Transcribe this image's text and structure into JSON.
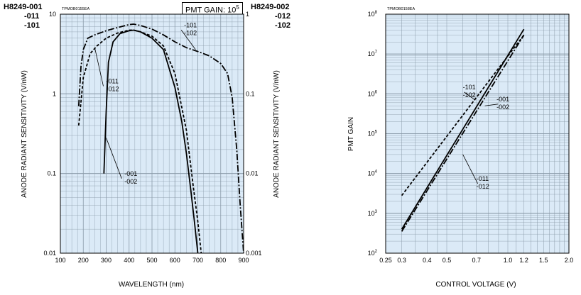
{
  "header": {
    "left_model": "H8249-001",
    "left_variants": [
      "-011",
      "-101"
    ],
    "right_model": "H8249-002",
    "right_variants": [
      "-012",
      "-102"
    ],
    "gain_label_prefix": "PMT GAIN: 10",
    "gain_label_exp": "5"
  },
  "chart_data": [
    {
      "type": "line",
      "figure_code": "TPMOB0155EA",
      "xlabel": "WAVELENGTH (nm)",
      "ylabel_left": "ANODE RADIANT SENSITIVITY (V/nW)",
      "ylabel_right": "ANODE RADIANT SENSITIVITY (V/nW)",
      "xlim": [
        100,
        900
      ],
      "ylim_left": [
        0.01,
        10
      ],
      "ylim_right": [
        0.001,
        1
      ],
      "y_scale": "log",
      "grid": true,
      "x_ticks": [
        "100",
        "200",
        "300",
        "400",
        "500",
        "600",
        "700",
        "800",
        "900"
      ],
      "y_ticks_left": [
        "0.01",
        "0.1",
        "1",
        "10"
      ],
      "y_ticks_right": [
        "0.001",
        "0.01",
        "0.1",
        "1"
      ],
      "series": [
        {
          "labels": [
            "-001",
            "-002"
          ],
          "style": "solid",
          "x": [
            290,
            300,
            310,
            330,
            360,
            400,
            420,
            450,
            500,
            550,
            600,
            630,
            650,
            670,
            685,
            700
          ],
          "y": [
            0.1,
            0.6,
            2.5,
            4.5,
            5.7,
            6.2,
            6.3,
            6.0,
            5.0,
            3.6,
            1.2,
            0.45,
            0.18,
            0.06,
            0.025,
            0.01
          ]
        },
        {
          "labels": [
            "-011",
            "-012"
          ],
          "style": "dashed",
          "x": [
            180,
            200,
            230,
            260,
            300,
            350,
            400,
            420,
            450,
            500,
            550,
            600,
            650,
            680,
            700,
            715
          ],
          "y": [
            0.4,
            1.6,
            3.2,
            4.0,
            5.0,
            5.8,
            6.3,
            6.3,
            6.0,
            5.3,
            4.0,
            1.8,
            0.35,
            0.07,
            0.025,
            0.01
          ]
        },
        {
          "labels": [
            "-101",
            "-102"
          ],
          "style": "dashdot",
          "x": [
            180,
            190,
            200,
            220,
            250,
            300,
            350,
            400,
            420,
            450,
            500,
            550,
            600,
            650,
            700,
            750,
            800,
            830,
            850,
            870,
            885,
            900
          ],
          "y": [
            0.7,
            2.2,
            3.6,
            5.0,
            5.5,
            6.2,
            6.8,
            7.4,
            7.5,
            7.2,
            6.5,
            5.5,
            4.5,
            3.8,
            3.4,
            3.0,
            2.4,
            1.8,
            0.9,
            0.2,
            0.04,
            0.01
          ]
        }
      ],
      "annotations": [
        {
          "lines": [
            "-101",
            "-102"
          ],
          "x": 640,
          "y": 6.6,
          "target_x": 690,
          "target_y": 3.6
        },
        {
          "lines": [
            "-011",
            "-012"
          ],
          "x": 300,
          "y": 1.3,
          "target_x": 250,
          "target_y": 3.8
        },
        {
          "lines": [
            "-001",
            "-002"
          ],
          "x": 380,
          "y": 0.09,
          "target_x": 300,
          "target_y": 0.28
        }
      ]
    },
    {
      "type": "line",
      "figure_code": "TPMOB0158EA",
      "xlabel": "CONTROL VOLTAGE (V)",
      "ylabel": "PMT GAIN",
      "x_scale": "log",
      "y_scale": "log",
      "xlim": [
        0.25,
        2.0
      ],
      "ylim": [
        100,
        100000000
      ],
      "grid": true,
      "x_ticks": [
        "0.25",
        "0.3",
        "0.4",
        "0.5",
        "0.7",
        "1.0",
        "1.2",
        "1.5",
        "2.0"
      ],
      "y_ticks": [
        {
          "base": "10",
          "exp": "2"
        },
        {
          "base": "10",
          "exp": "3"
        },
        {
          "base": "10",
          "exp": "4"
        },
        {
          "base": "10",
          "exp": "5"
        },
        {
          "base": "10",
          "exp": "6"
        },
        {
          "base": "10",
          "exp": "7"
        },
        {
          "base": "10",
          "exp": "8"
        }
      ],
      "series": [
        {
          "labels": [
            "-001",
            "-002"
          ],
          "style": "solid",
          "x": [
            0.3,
            1.2
          ],
          "y": [
            400,
            42000000
          ]
        },
        {
          "labels": [
            "-011",
            "-012"
          ],
          "style": "dashdot",
          "x": [
            0.3,
            1.2
          ],
          "y": [
            350,
            30000000
          ]
        },
        {
          "labels": [
            "-101",
            "-102"
          ],
          "style": "dashed",
          "x": [
            0.3,
            1.2
          ],
          "y": [
            2800,
            30000000
          ]
        }
      ],
      "annotations": [
        {
          "lines": [
            "-101",
            "-102"
          ],
          "x": 0.6,
          "y": 1200000,
          "target_x": 0.69,
          "target_y": 700000
        },
        {
          "lines": [
            "-001",
            "-002"
          ],
          "x": 0.88,
          "y": 600000,
          "target_x": 0.77,
          "target_y": 500000
        },
        {
          "lines": [
            "-011",
            "-012"
          ],
          "x": 0.7,
          "y": 6000,
          "target_x": 0.6,
          "target_y": 30000
        }
      ]
    }
  ]
}
